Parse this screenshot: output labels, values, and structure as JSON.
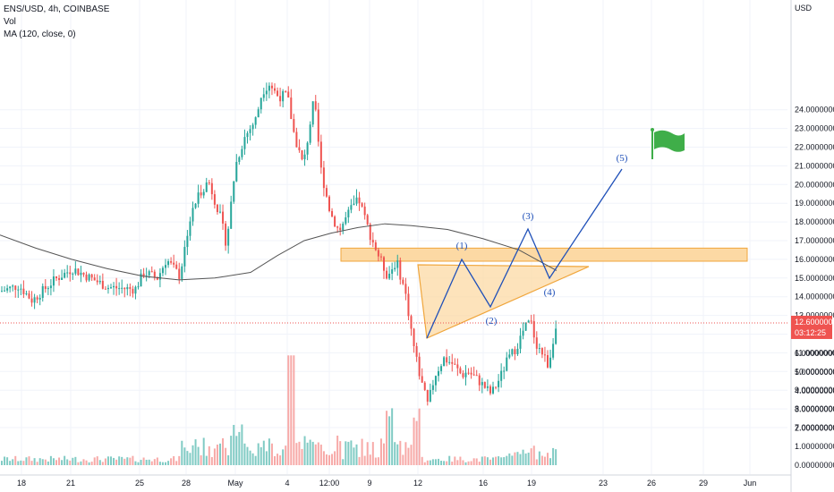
{
  "legend": {
    "symbol_line": "ENS/USD, 4h, COINBASE",
    "vol_label": "Vol",
    "ma_label": "MA (120, close, 0)"
  },
  "chart_data": {
    "type": "candlestick",
    "price_axis_unit": "USD",
    "price_ticks": [
      "24.00000000",
      "23.00000000",
      "22.00000000",
      "21.00000000",
      "20.00000000",
      "19.00000000",
      "18.00000000",
      "17.00000000",
      "16.00000000",
      "15.00000000",
      "14.00000000",
      "13.00000000",
      "11.00000000",
      "10.00000000",
      "9.00000000",
      "8.00000000",
      "7.00000000"
    ],
    "volume_ticks": [
      "6.00000000",
      "5.00000000",
      "4.00000000",
      "3.00000000",
      "2.00000000",
      "1.00000000",
      "0.00000000"
    ],
    "date_ticks": [
      "18",
      "21",
      "25",
      "28",
      "May",
      "4",
      "12:00",
      "9",
      "12",
      "16",
      "19",
      "23",
      "26",
      "29",
      "Jun"
    ],
    "current_price": "12.60000000",
    "countdown": "03:12:25",
    "wave_labels": [
      "(1)",
      "(2)",
      "(3)",
      "(4)",
      "(5)"
    ],
    "resistance_zone": [
      15.9,
      16.6
    ],
    "colors": {
      "up": "#26a69a",
      "down": "#ef5350",
      "vol_up": "#80cbc4",
      "vol_down": "#f7a9a7",
      "ma": "#555555",
      "zone_fill": "#fcd9a4",
      "zone_stroke": "#f0a63c",
      "wave": "#1e4fb8",
      "flag": "#3fae49",
      "price_tag": "#ef5350"
    }
  }
}
